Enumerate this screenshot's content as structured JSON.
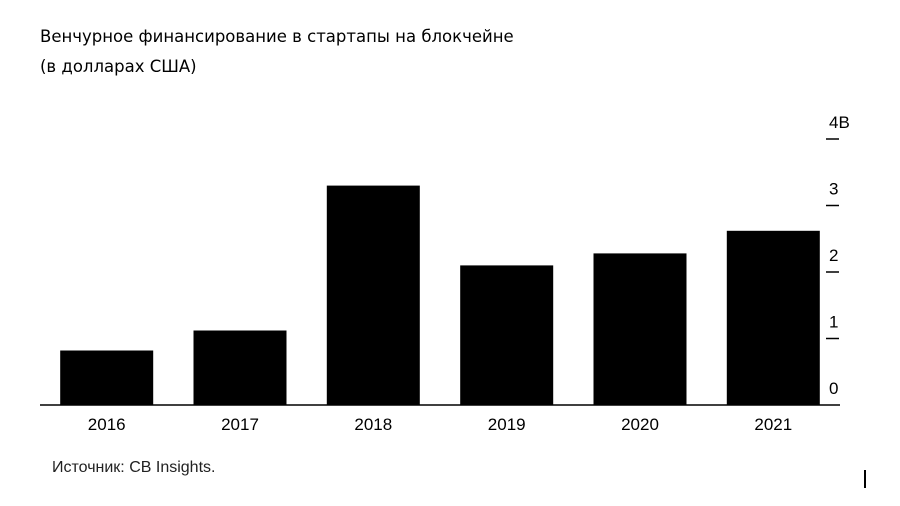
{
  "title": "Венчурное финансирование в стартапы на блокчейне",
  "subtitle": "(в долларах США)",
  "source": "Источник: CB Insights.",
  "colors": {
    "bar": "#000000",
    "axis": "#000000",
    "text": "#000000"
  },
  "chart_data": {
    "type": "bar",
    "title": "Венчурное финансирование в стартапы на блокчейне",
    "subtitle": "(в долларах США)",
    "categories": [
      "2016",
      "2017",
      "2018",
      "2019",
      "2020",
      "2021"
    ],
    "values": [
      0.82,
      1.12,
      3.3,
      2.1,
      2.28,
      2.62
    ],
    "ylim": [
      0,
      4
    ],
    "y_ticks": [
      {
        "value": 0,
        "label": "0"
      },
      {
        "value": 1,
        "label": "1"
      },
      {
        "value": 2,
        "label": "2"
      },
      {
        "value": 3,
        "label": "3"
      },
      {
        "value": 4,
        "label": "4B"
      }
    ],
    "y_axis_side": "right",
    "grid": false,
    "legend": false,
    "xlabel": "",
    "ylabel": ""
  }
}
